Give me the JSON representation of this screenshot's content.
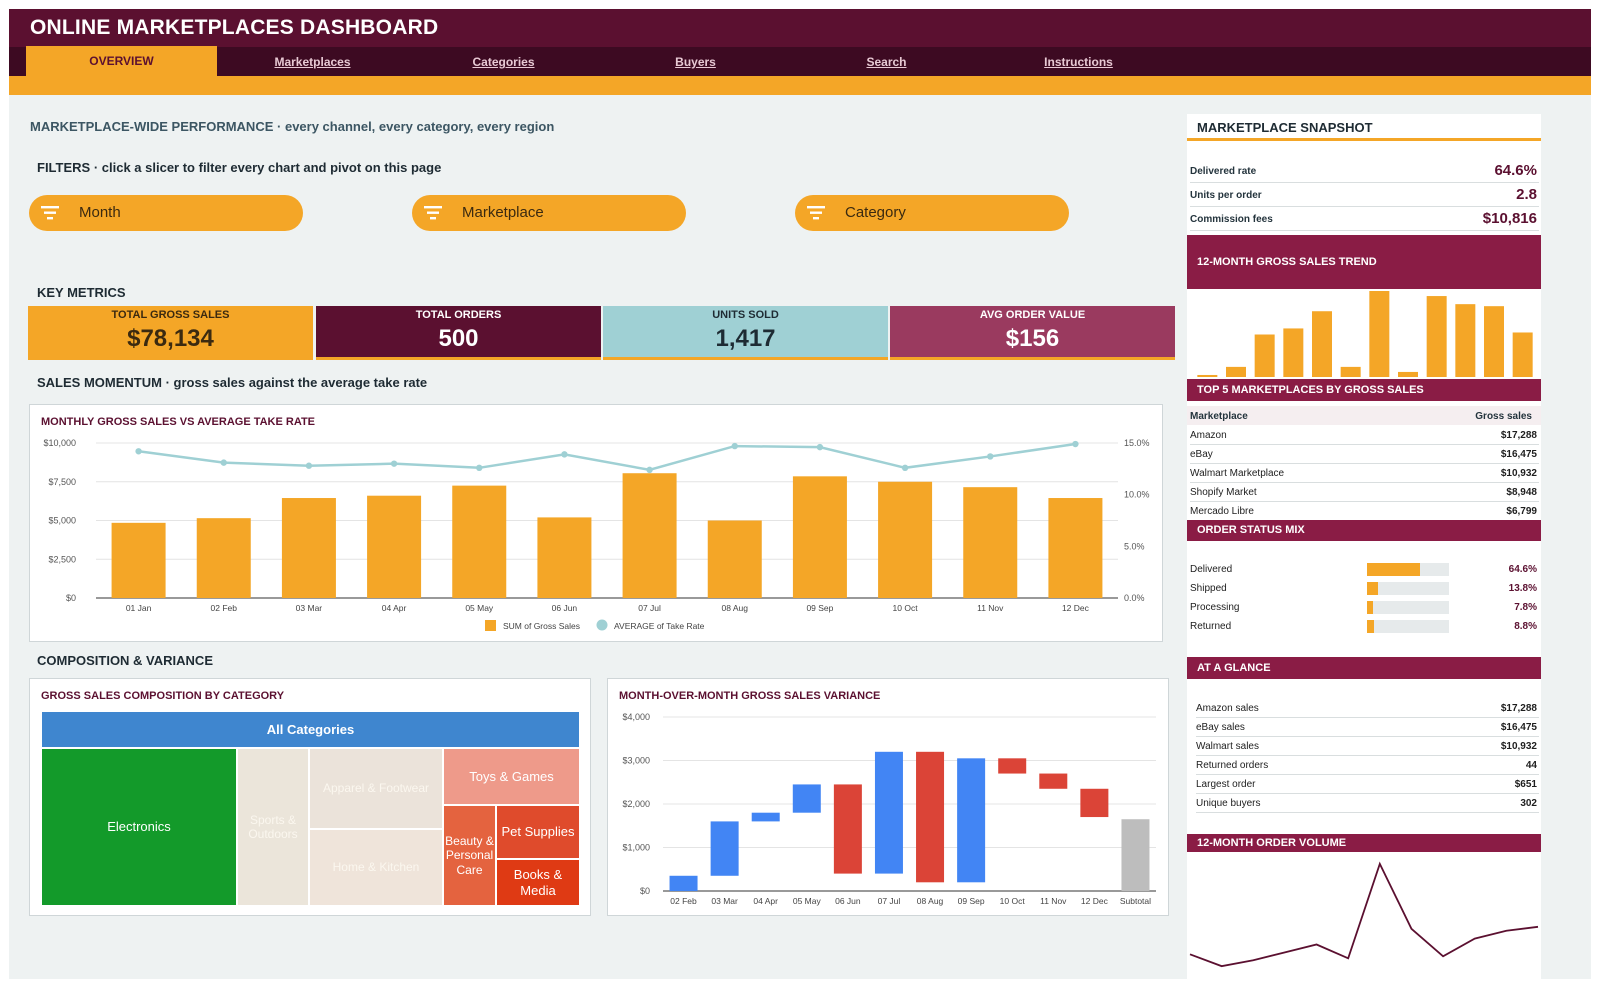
{
  "app": {
    "title": "ONLINE MARKETPLACES DASHBOARD"
  },
  "tabs": [
    {
      "label": "OVERVIEW",
      "active": true
    },
    {
      "label": "Marketplaces"
    },
    {
      "label": "Categories"
    },
    {
      "label": "Buyers"
    },
    {
      "label": "Search"
    },
    {
      "label": "Instructions"
    }
  ],
  "headline": {
    "title": "MARKETPLACE-WIDE PERFORMANCE",
    "subtitle": "every channel, every category, every region"
  },
  "filters": {
    "title": "FILTERS",
    "hint": "click a slicer to filter every chart and pivot on this page",
    "slicers": [
      {
        "label": "Month"
      },
      {
        "label": "Marketplace"
      },
      {
        "label": "Category"
      }
    ]
  },
  "key_metrics": {
    "title": "KEY METRICS",
    "cards": [
      {
        "label": "TOTAL GROSS SALES",
        "value": "$78,134",
        "bg": "#f4a627",
        "fg": "#3b2a10"
      },
      {
        "label": "TOTAL ORDERS",
        "value": "500",
        "bg": "#5b1030",
        "fg": "#ffffff"
      },
      {
        "label": "UNITS SOLD",
        "value": "1,417",
        "bg": "#9fd0d4",
        "fg": "#1e2b33"
      },
      {
        "label": "AVG ORDER VALUE",
        "value": "$156",
        "bg": "#9a3a5f",
        "fg": "#ffffff"
      }
    ]
  },
  "momentum": {
    "title": "SALES MOMENTUM",
    "subtitle": "gross sales against the average take rate"
  },
  "composition": {
    "title": "COMPOSITION & VARIANCE"
  },
  "colors": {
    "orange": "#f4a627",
    "maroon": "#5b1030",
    "teal": "#9fd0d4",
    "blue": "#4285f4",
    "red": "#db4437",
    "grey": "#bdbdbd"
  },
  "chart_data": [
    {
      "type": "bar",
      "title": "MONTHLY GROSS SALES VS AVERAGE TAKE RATE",
      "categories": [
        "01 Jan",
        "02 Feb",
        "03 Mar",
        "04 Apr",
        "05 May",
        "06 Jun",
        "07 Jul",
        "08 Aug",
        "09 Sep",
        "10 Oct",
        "11 Nov",
        "12 Dec"
      ],
      "series": [
        {
          "name": "SUM of Gross Sales",
          "type": "bar",
          "axis": "left",
          "values": [
            4850,
            5150,
            6450,
            6600,
            7250,
            5200,
            8050,
            5000,
            7850,
            7500,
            7150,
            6450
          ]
        },
        {
          "name": "AVERAGE of Take Rate",
          "type": "line",
          "axis": "right",
          "values": [
            14.2,
            13.1,
            12.8,
            13.0,
            12.6,
            13.9,
            12.4,
            14.7,
            14.6,
            12.6,
            13.7,
            14.9
          ]
        }
      ],
      "yticks_left": [
        "$0",
        "$2,500",
        "$5,000",
        "$7,500",
        "$10,000"
      ],
      "yticks_right": [
        "0.0%",
        "5.0%",
        "10.0%",
        "15.0%"
      ],
      "ylim_left": [
        0,
        10000
      ],
      "ylim_right": [
        0,
        15
      ],
      "legend": "bottom"
    },
    {
      "type": "treemap",
      "title": "GROSS SALES COMPOSITION BY CATEGORY",
      "root": "All Categories",
      "nodes": [
        {
          "name": "Electronics"
        },
        {
          "name": "Sports & Outdoors"
        },
        {
          "name": "Apparel & Footwear"
        },
        {
          "name": "Home & Kitchen"
        },
        {
          "name": "Toys & Games"
        },
        {
          "name": "Beauty & Personal Care"
        },
        {
          "name": "Pet Supplies"
        },
        {
          "name": "Books & Media"
        }
      ]
    },
    {
      "type": "waterfall",
      "title": "MONTH-OVER-MONTH GROSS SALES VARIANCE",
      "categories": [
        "02 Feb",
        "03 Mar",
        "04 Apr",
        "05 May",
        "06 Jun",
        "07 Jul",
        "08 Aug",
        "09 Sep",
        "10 Oct",
        "11 Nov",
        "12 Dec",
        "Subtotal"
      ],
      "changes": [
        350,
        1250,
        200,
        650,
        -2050,
        2800,
        -3000,
        2850,
        -350,
        -350,
        -650,
        1650
      ],
      "start": 0,
      "yticks": [
        "$0",
        "$1,000",
        "$2,000",
        "$3,000",
        "$4,000"
      ],
      "ylim": [
        0,
        4000
      ]
    },
    {
      "type": "bar",
      "title": "12-MONTH GROSS SALES TREND",
      "values": [
        2,
        10,
        42,
        48,
        65,
        10,
        85,
        5,
        80,
        72,
        70,
        44
      ],
      "ylim": [
        0,
        85
      ]
    },
    {
      "type": "line",
      "title": "12-MONTH ORDER VOLUME",
      "values": [
        40,
        34,
        37,
        41,
        45,
        38,
        86,
        53,
        39,
        48,
        52,
        54
      ],
      "ylim": [
        30,
        90
      ]
    }
  ],
  "sidebar": {
    "snapshot": {
      "title": "MARKETPLACE SNAPSHOT",
      "rows": [
        {
          "label": "Delivered rate",
          "value": "64.6%"
        },
        {
          "label": "Units per order",
          "value": "2.8"
        },
        {
          "label": "Commission fees",
          "value": "$10,816"
        }
      ]
    },
    "top5": {
      "title": "TOP 5 MARKETPLACES BY GROSS SALES",
      "col_marketplace": "Marketplace",
      "col_sales": "Gross sales",
      "rows": [
        {
          "name": "Amazon",
          "value": "$17,288"
        },
        {
          "name": "eBay",
          "value": "$16,475"
        },
        {
          "name": "Walmart Marketplace",
          "value": "$10,932"
        },
        {
          "name": "Shopify Market",
          "value": "$8,948"
        },
        {
          "name": "Mercado Libre",
          "value": "$6,799"
        }
      ]
    },
    "status_mix": {
      "title": "ORDER STATUS MIX",
      "rows": [
        {
          "label": "Delivered",
          "value": "64.6%",
          "fraction": 0.646
        },
        {
          "label": "Shipped",
          "value": "13.8%",
          "fraction": 0.138
        },
        {
          "label": "Processing",
          "value": "7.8%",
          "fraction": 0.078
        },
        {
          "label": "Returned",
          "value": "8.8%",
          "fraction": 0.088
        }
      ]
    },
    "glance": {
      "title": "AT A GLANCE",
      "rows": [
        {
          "label": "Amazon sales",
          "value": "$17,288"
        },
        {
          "label": "eBay sales",
          "value": "$16,475"
        },
        {
          "label": "Walmart sales",
          "value": "$10,932"
        },
        {
          "label": "Returned orders",
          "value": "44"
        },
        {
          "label": "Largest order",
          "value": "$651"
        },
        {
          "label": "Unique buyers",
          "value": "302"
        }
      ]
    }
  }
}
